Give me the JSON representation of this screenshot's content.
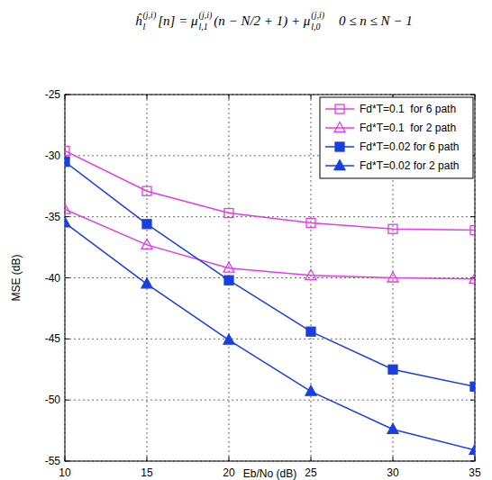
{
  "formula": [
    [
      "ĥ",
      "l",
      "(j,i)"
    ],
    [
      "[n] = μ",
      "l,1",
      "(j,i)"
    ],
    [
      "(n − N/2 + 1) + μ",
      "l,0",
      "(j,i)"
    ],
    [
      "0 ≤ n ≤ N − 1",
      null,
      null
    ]
  ],
  "chart_data": {
    "type": "line",
    "x_label": "Eb/No (dB)",
    "y_label": "MSE (dB)",
    "x": [
      10,
      15,
      20,
      25,
      30,
      35
    ],
    "series": [
      {
        "name": "Fd*T=0.1  for 6 path",
        "color": "#e23ee2",
        "marker": "square-open",
        "values": [
          -29.6,
          -32.9,
          -34.7,
          -35.5,
          -36.0,
          -36.1
        ]
      },
      {
        "name": "Fd*T=0.1  for 2 path",
        "color": "#e23ee2",
        "marker": "triangle-open",
        "values": [
          -34.4,
          -37.3,
          -39.2,
          -39.8,
          -40.0,
          -40.1
        ]
      },
      {
        "name": "Fd*T=0.02 for 6 path",
        "color": "#1a3fe0",
        "marker": "square",
        "values": [
          -30.5,
          -35.6,
          -40.2,
          -44.4,
          -47.5,
          -48.9
        ]
      },
      {
        "name": "Fd*T=0.02 for 2 path",
        "color": "#1a3fe0",
        "marker": "triangle",
        "values": [
          -35.5,
          -40.5,
          -45.1,
          -49.3,
          -52.4,
          -54.1
        ]
      }
    ],
    "xlim": [
      10,
      35
    ],
    "xticks": [
      10,
      15,
      20,
      25,
      30,
      35
    ],
    "ylim": [
      -55,
      -25
    ],
    "yticks": [
      -55,
      -50,
      -45,
      -40,
      -35,
      -30,
      -25
    ],
    "grid": true,
    "legend": "top-right"
  }
}
